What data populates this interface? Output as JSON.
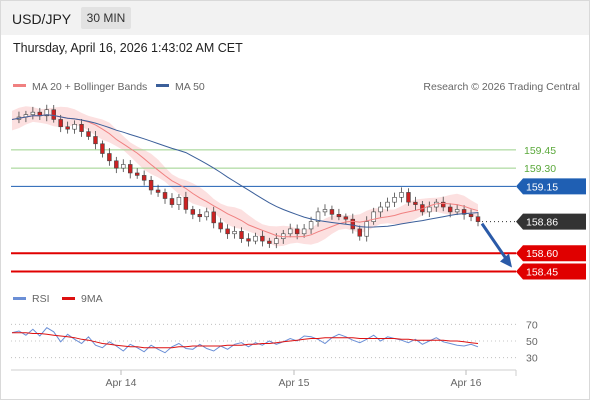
{
  "header": {
    "symbol": "USD/JPY",
    "timeframe": "30 MIN"
  },
  "datetime": "Thursday, April 16, 2026 1:43:02 AM CET",
  "legend": {
    "ma20_bb": "MA 20 + Bollinger Bands",
    "ma50": "MA 50",
    "credit": "Research © 2026 Trading Central",
    "rsi": "RSI",
    "rsi_ma": "9MA"
  },
  "colors": {
    "bollinger_band": "#fbd5d5",
    "ma20": "#f08080",
    "ma50": "#3b5f9a",
    "up_candle": "#ffffff",
    "down_candle": "#cc2222",
    "resistance": "#9bd08a",
    "pivot": "#1f5fb3",
    "support": "#e00000",
    "current": "#333333",
    "arrow": "#2a5aa8",
    "rsi": "#6b8fd6",
    "rsi_ma": "#dd1111"
  },
  "chart_data": [
    {
      "type": "candlestick",
      "title": "USD/JPY",
      "timeframe": "30 MIN",
      "ylim": [
        158.38,
        159.86
      ],
      "x_ticks": [
        "Apr 14",
        "Apr 15",
        "Apr 16"
      ],
      "grid": false,
      "legend_position": "top-left",
      "series": [
        {
          "name": "MA 20 + Bollinger Bands"
        },
        {
          "name": "MA 50"
        }
      ],
      "close_path": [
        159.7,
        159.72,
        159.74,
        159.76,
        159.73,
        159.78,
        159.7,
        159.64,
        159.62,
        159.66,
        159.6,
        159.56,
        159.5,
        159.42,
        159.36,
        159.3,
        159.33,
        159.26,
        159.24,
        159.2,
        159.12,
        159.1,
        159.05,
        159.0,
        159.06,
        158.96,
        158.92,
        158.9,
        158.94,
        158.85,
        158.8,
        158.76,
        158.78,
        158.72,
        158.7,
        158.74,
        158.7,
        158.68,
        158.72,
        158.76,
        158.8,
        158.76,
        158.8,
        158.86,
        158.94,
        158.96,
        158.92,
        158.9,
        158.88,
        158.8,
        158.74,
        158.86,
        158.94,
        158.98,
        159.02,
        159.06,
        159.1,
        159.02,
        159.0,
        158.94,
        158.98,
        159.02,
        158.98,
        158.94,
        158.96,
        158.92,
        158.9,
        158.86
      ],
      "levels": [
        {
          "label": "159.45",
          "value": 159.45,
          "kind": "resistance"
        },
        {
          "label": "159.30",
          "value": 159.3,
          "kind": "resistance"
        },
        {
          "label": "159.15",
          "value": 159.15,
          "kind": "pivot"
        },
        {
          "label": "158.86",
          "value": 158.86,
          "kind": "current"
        },
        {
          "label": "158.60",
          "value": 158.6,
          "kind": "support"
        },
        {
          "label": "158.45",
          "value": 158.45,
          "kind": "support"
        }
      ],
      "arrow_target": 158.45
    },
    {
      "type": "line",
      "ylim": [
        20,
        80
      ],
      "y_ticks": [
        70,
        50,
        30
      ],
      "series": [
        {
          "name": "RSI",
          "values": [
            60,
            62,
            57,
            64,
            56,
            66,
            61,
            49,
            58,
            52,
            47,
            55,
            45,
            42,
            49,
            44,
            38,
            46,
            42,
            37,
            45,
            40,
            36,
            43,
            47,
            41,
            40,
            46,
            41,
            38,
            44,
            40,
            46,
            48,
            43,
            48,
            45,
            50,
            46,
            49,
            53,
            50,
            56,
            55,
            52,
            47,
            54,
            58,
            55,
            51,
            48,
            52,
            57,
            50,
            55,
            53,
            51,
            48,
            52,
            46,
            50,
            54,
            49,
            47,
            45,
            44,
            46,
            43
          ]
        },
        {
          "name": "9MA",
          "values": [
            60,
            60,
            60,
            59,
            59,
            58,
            57,
            56,
            55,
            54,
            52,
            51,
            49,
            47,
            46,
            45,
            44,
            43,
            43,
            42,
            42,
            42,
            42,
            42,
            43,
            43,
            44,
            44,
            44,
            44,
            44,
            45,
            45,
            45,
            46,
            46,
            47,
            47,
            48,
            49,
            50,
            51,
            52,
            53,
            53,
            54,
            54,
            54,
            54,
            54,
            53,
            53,
            53,
            53,
            53,
            53,
            52,
            52,
            51,
            51,
            51,
            51,
            51,
            50,
            50,
            49,
            48,
            47
          ]
        }
      ]
    }
  ]
}
